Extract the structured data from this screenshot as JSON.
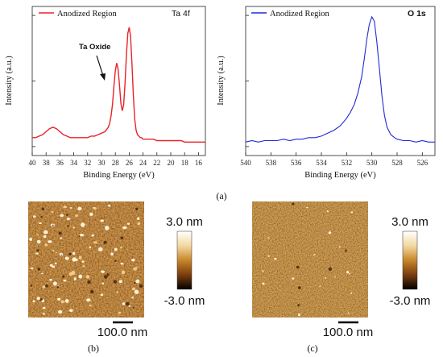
{
  "figure_caption_a": "(a)",
  "figure_caption_b": "(b)",
  "figure_caption_c": "(c)",
  "colorscale": {
    "max_label": "3.0 nm",
    "min_label": "-3.0 nm",
    "colors": [
      "#ffffff",
      "#f2d9a0",
      "#c8862a",
      "#7a3e0e",
      "#000000"
    ]
  },
  "scalebar_label": "100.0 nm",
  "chart_data": [
    {
      "type": "line",
      "panel": "Ta 4f",
      "xlabel": "Binding Energy (eV)",
      "ylabel": "Intensity (a.u.)",
      "xlim": [
        40,
        15
      ],
      "ylim": [
        0,
        1
      ],
      "x_ticks": [
        "40",
        "38",
        "36",
        "34",
        "32",
        "30",
        "28",
        "26",
        "24",
        "22",
        "20",
        "18",
        "16"
      ],
      "annotation": "Ta Oxide",
      "series": [
        {
          "name": "Anodized Region",
          "color": "#e8232a",
          "x": [
            40,
            39.5,
            39,
            38.5,
            38,
            37.5,
            37,
            36.5,
            36,
            35.5,
            35,
            34.5,
            34,
            33.5,
            33,
            32.5,
            32,
            31.5,
            31,
            30.5,
            30,
            29.5,
            29,
            28.8,
            28.6,
            28.4,
            28.2,
            28.0,
            27.8,
            27.6,
            27.4,
            27.2,
            27.0,
            26.8,
            26.6,
            26.4,
            26.2,
            26.0,
            25.8,
            25.6,
            25.4,
            25.2,
            25.0,
            24.8,
            24.6,
            24.4,
            24.2,
            24,
            23.5,
            23,
            22.5,
            22,
            21.5,
            21,
            20.5,
            20,
            19.5,
            19,
            18.5,
            18,
            17.5,
            17,
            16.5,
            16,
            15.5,
            15
          ],
          "y": [
            0.12,
            0.12,
            0.13,
            0.14,
            0.16,
            0.18,
            0.19,
            0.18,
            0.16,
            0.14,
            0.13,
            0.12,
            0.12,
            0.12,
            0.12,
            0.12,
            0.12,
            0.13,
            0.13,
            0.14,
            0.15,
            0.16,
            0.19,
            0.22,
            0.27,
            0.35,
            0.47,
            0.57,
            0.62,
            0.58,
            0.47,
            0.35,
            0.3,
            0.34,
            0.48,
            0.68,
            0.82,
            0.86,
            0.8,
            0.62,
            0.4,
            0.24,
            0.17,
            0.14,
            0.13,
            0.12,
            0.12,
            0.11,
            0.11,
            0.11,
            0.11,
            0.1,
            0.1,
            0.1,
            0.1,
            0.1,
            0.1,
            0.1,
            0.1,
            0.09,
            0.09,
            0.09,
            0.09,
            0.09,
            0.09,
            0.09
          ]
        }
      ]
    },
    {
      "type": "line",
      "panel": "O 1s",
      "xlabel": "Binding Energy (eV)",
      "ylabel": "Intensity (a.u.)",
      "xlim": [
        540,
        525
      ],
      "ylim": [
        0,
        1
      ],
      "x_ticks": [
        "540",
        "538",
        "536",
        "534",
        "532",
        "530",
        "528",
        "526"
      ],
      "series": [
        {
          "name": "Anodized Region",
          "color": "#1f2bd6",
          "x": [
            540,
            539.5,
            539,
            538.5,
            538,
            537.5,
            537,
            536.5,
            536,
            535.5,
            535,
            534.5,
            534,
            533.5,
            533,
            532.5,
            532,
            531.7,
            531.4,
            531.1,
            530.8,
            530.6,
            530.4,
            530.2,
            530.0,
            529.8,
            529.6,
            529.4,
            529.2,
            529.0,
            528.8,
            528.5,
            528.2,
            528,
            527.5,
            527,
            526.5,
            526,
            525.5,
            525
          ],
          "y": [
            0.09,
            0.1,
            0.09,
            0.1,
            0.1,
            0.1,
            0.11,
            0.1,
            0.11,
            0.11,
            0.12,
            0.12,
            0.13,
            0.15,
            0.17,
            0.2,
            0.25,
            0.29,
            0.34,
            0.42,
            0.53,
            0.65,
            0.78,
            0.88,
            0.93,
            0.9,
            0.76,
            0.58,
            0.4,
            0.27,
            0.19,
            0.14,
            0.12,
            0.11,
            0.1,
            0.1,
            0.09,
            0.1,
            0.09,
            0.09
          ]
        }
      ]
    }
  ]
}
